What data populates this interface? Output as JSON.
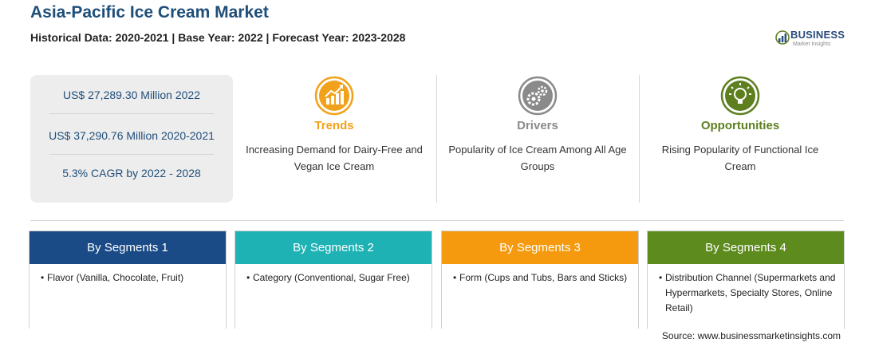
{
  "header": {
    "title": "Asia-Pacific Ice Cream Market",
    "subtitle": "Historical Data: 2020-2021 | Base Year: 2022 | Forecast Year: 2023-2028"
  },
  "logo": {
    "name": "BUSINESS",
    "tagline": "Market Insights"
  },
  "stats": [
    "US$ 27,289.30 Million 2022",
    "US$ 37,290.76 Million 2020-2021",
    "5.3% CAGR by 2022 - 2028"
  ],
  "cards": [
    {
      "title": "Trends",
      "desc": "Increasing Demand for Dairy-Free and Vegan Ice Cream",
      "icon": "chart-trend-icon",
      "color": "#f2a11a"
    },
    {
      "title": "Drivers",
      "desc": "Popularity of Ice Cream Among All Age Groups",
      "icon": "gears-icon",
      "color": "#8a8a8a"
    },
    {
      "title": "Opportunities",
      "desc": "Rising Popularity of Functional Ice Cream",
      "icon": "lightbulb-icon",
      "color": "#5d7f1f"
    }
  ],
  "segments": [
    {
      "title": "By Segments 1",
      "bullet": "•",
      "text": "Flavor (Vanilla, Chocolate, Fruit)",
      "color": "#1b4b86"
    },
    {
      "title": "By Segments 2",
      "bullet": "•",
      "text": "Category (Conventional, Sugar Free)",
      "color": "#1fb2b5"
    },
    {
      "title": "By Segments 3",
      "bullet": "•",
      "text": "Form (Cups and Tubs, Bars and Sticks)",
      "color": "#f59a0e"
    },
    {
      "title": "By Segments 4",
      "bullet": "•",
      "text": "Distribution Channel (Supermarkets and Hypermarkets, Specialty Stores, Online Retail)",
      "color": "#5e8b1e"
    }
  ],
  "source": "Source: www.businessmarketinsights.com"
}
